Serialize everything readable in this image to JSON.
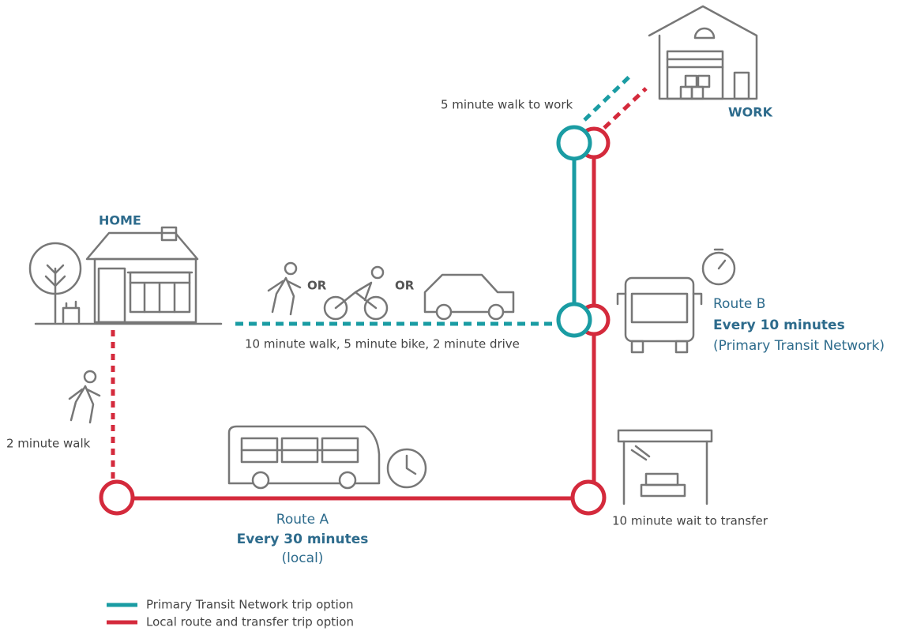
{
  "places": {
    "home": "HOME",
    "work": "WORK"
  },
  "annotations": {
    "walk_to_work": "5 minute walk to work",
    "home_to_stop": "10 minute walk, 5 minute bike, 2 minute drive",
    "walk_to_local": "2 minute walk",
    "transfer_wait": "10 minute wait to transfer"
  },
  "connectors": [
    "OR",
    "OR"
  ],
  "route_a": {
    "name": "Route A",
    "frequency": "Every 30 minutes",
    "note": "(local)"
  },
  "route_b": {
    "name": "Route B",
    "frequency": "Every 10 minutes",
    "note": "(Primary Transit Network)"
  },
  "legend": [
    "Primary Transit Network trip option",
    "Local route and transfer trip option"
  ]
}
